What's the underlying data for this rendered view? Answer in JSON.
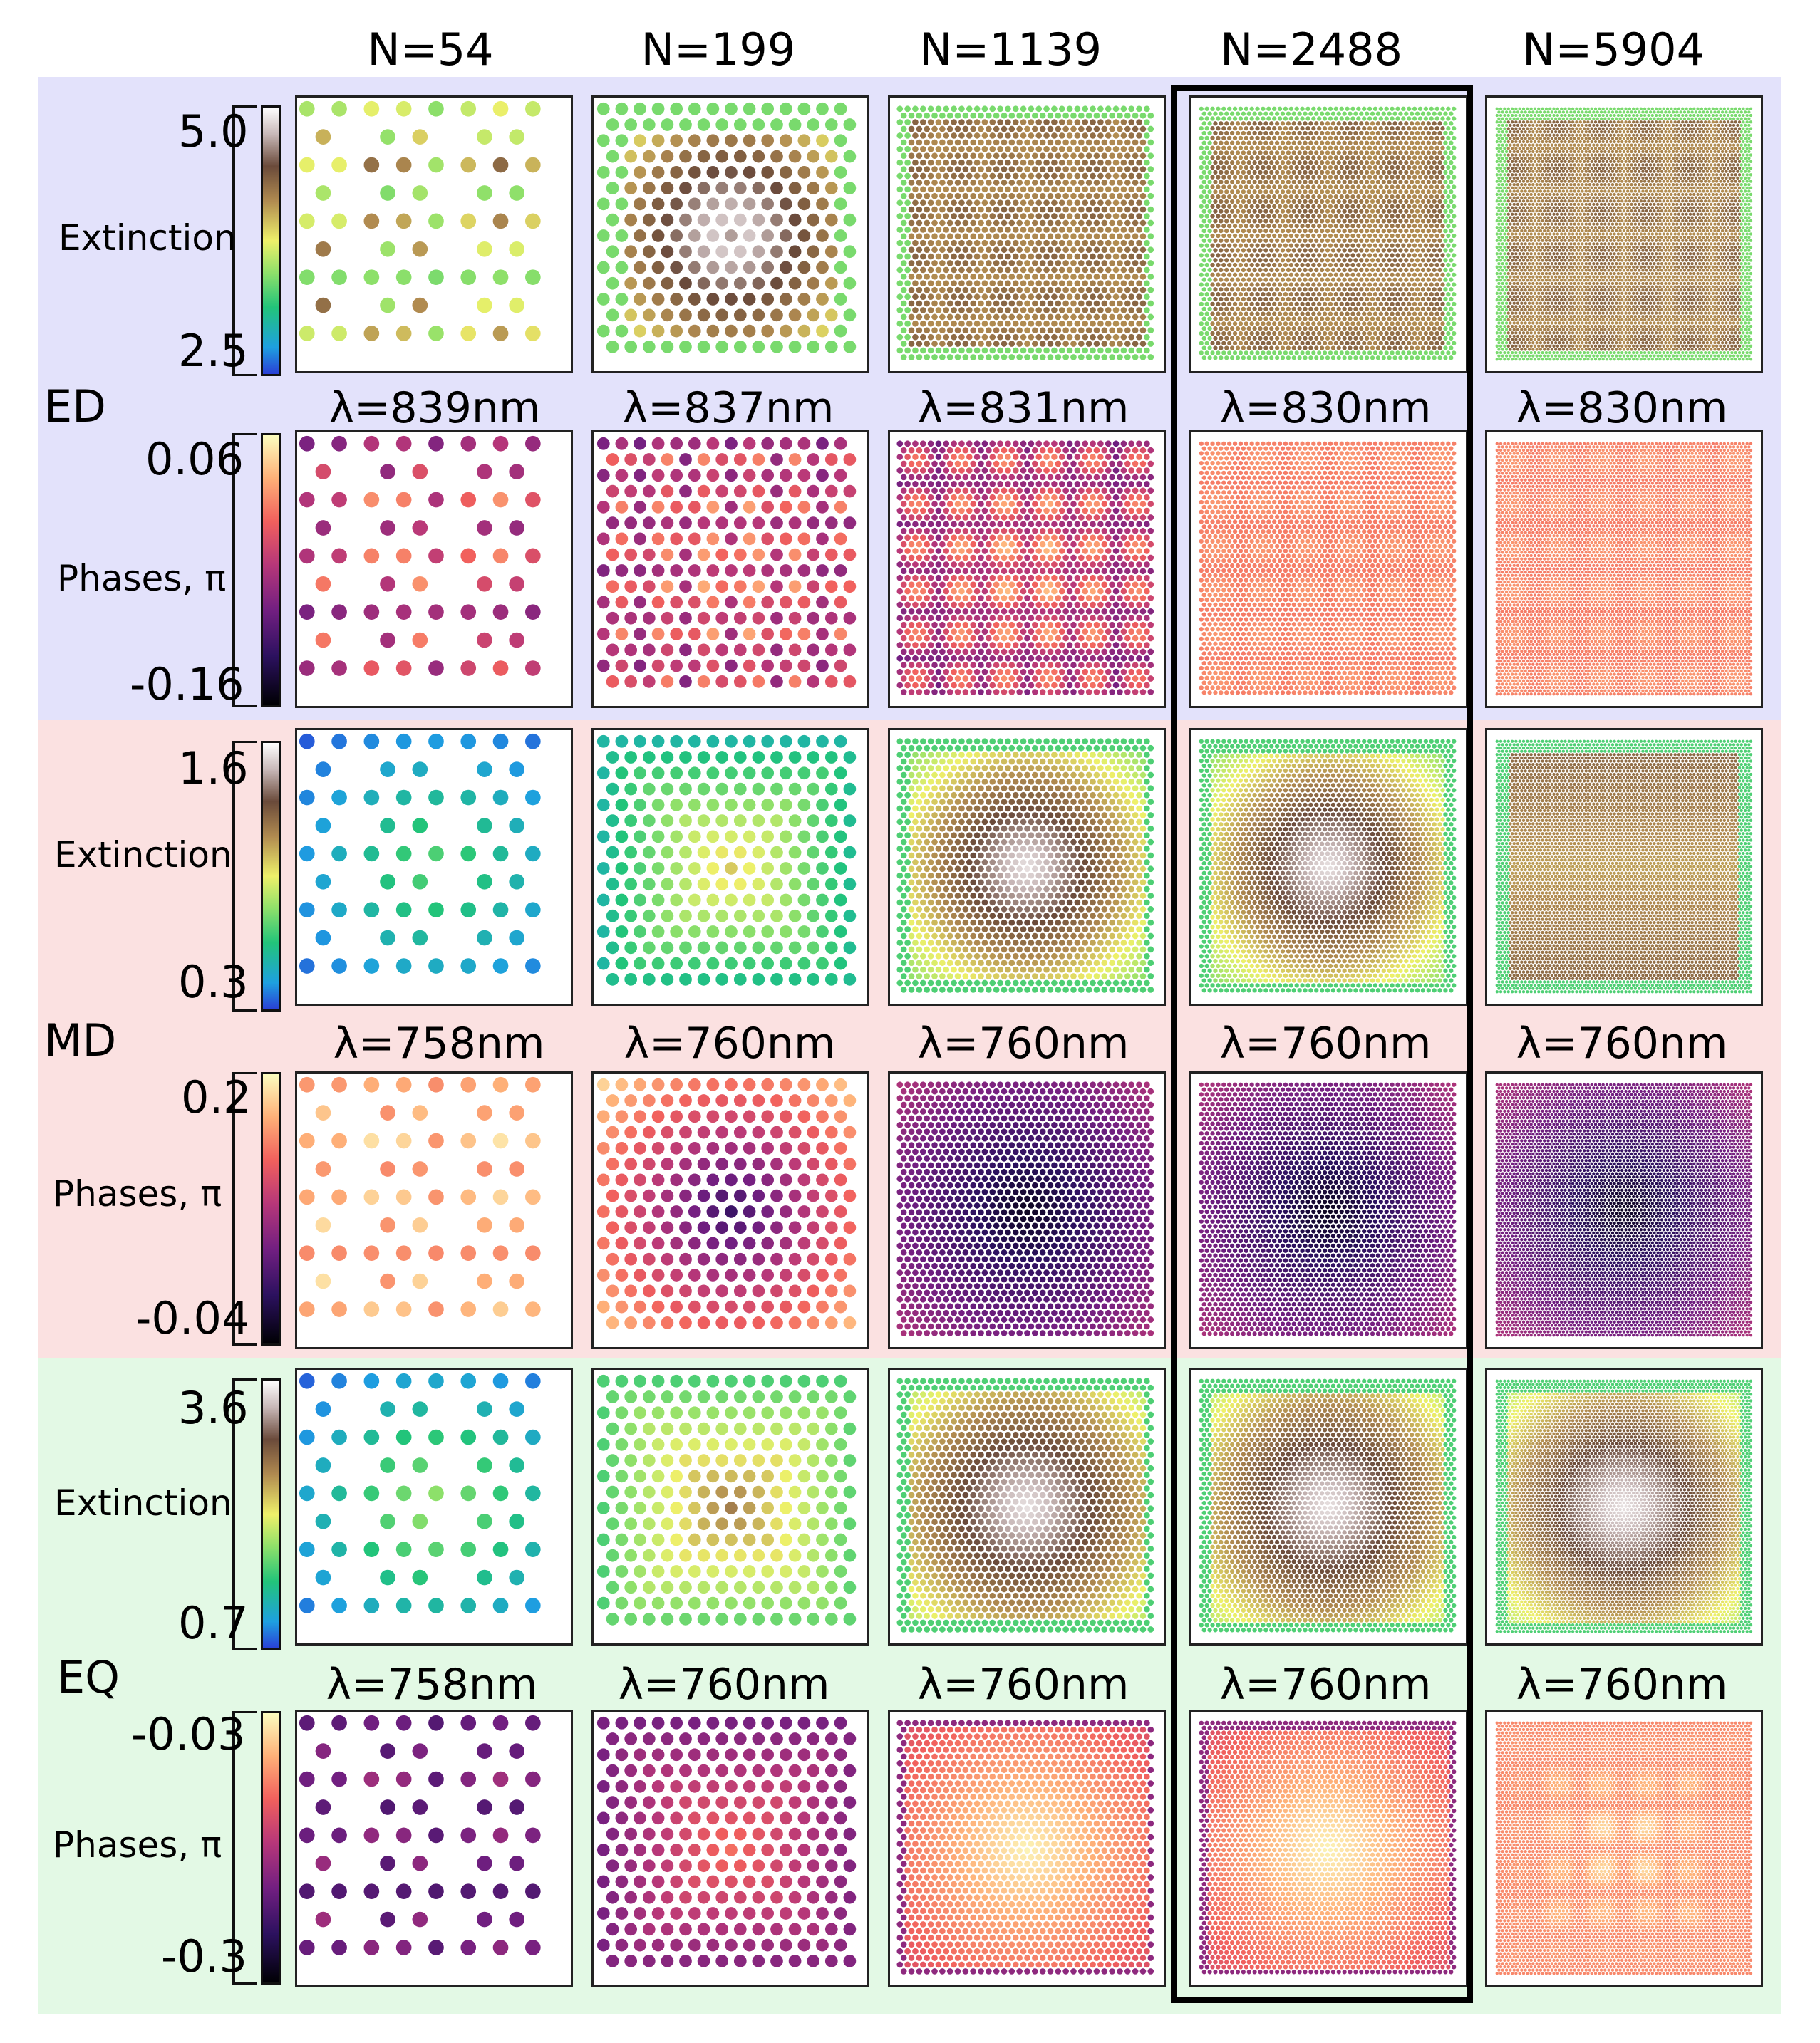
{
  "columns": [
    "N=54",
    "N=199",
    "N=1139",
    "N=2488",
    "N=5904"
  ],
  "rows": [
    {
      "tag": "ED",
      "extinction": {
        "label": "Extinction",
        "max": "5.0",
        "min": "2.5"
      },
      "phases": {
        "label": "Phases, π",
        "max": "0.06",
        "min": "-0.16"
      },
      "wavelengths": [
        "λ=839nm",
        "λ=837nm",
        "λ=831nm",
        "λ=830nm",
        "λ=830nm"
      ]
    },
    {
      "tag": "MD",
      "extinction": {
        "label": "Extinction",
        "max": "1.6",
        "min": "0.3"
      },
      "phases": {
        "label": "Phases, π",
        "max": "0.2",
        "min": "-0.04"
      },
      "wavelengths": [
        "λ=758nm",
        "λ=760nm",
        "λ=760nm",
        "λ=760nm",
        "λ=760nm"
      ]
    },
    {
      "tag": "EQ",
      "extinction": {
        "label": "Extinction",
        "max": "3.6",
        "min": "0.7"
      },
      "phases": {
        "label": "Phases, π",
        "max": "-0.03",
        "min": "-0.3"
      },
      "wavelengths": [
        "λ=758nm",
        "λ=760nm",
        "λ=760nm",
        "λ=760nm",
        "λ=760nm"
      ]
    }
  ],
  "colormaps": {
    "extinction": [
      "#2a3fd6",
      "#1ea0e0",
      "#22c47a",
      "#8fe06a",
      "#eef06a",
      "#b08a50",
      "#6a4a3a",
      "#c8b8b8",
      "#ffffff"
    ],
    "phases": [
      "#000004",
      "#2c115f",
      "#721f81",
      "#b73779",
      "#f1605d",
      "#feb078",
      "#fcfdbf"
    ]
  },
  "band_colors": {
    "ED": "#e3e2fb",
    "MD": "#fbe1e1",
    "EQ": "#e3f9e5"
  },
  "highlighted_column": "N=2488"
}
